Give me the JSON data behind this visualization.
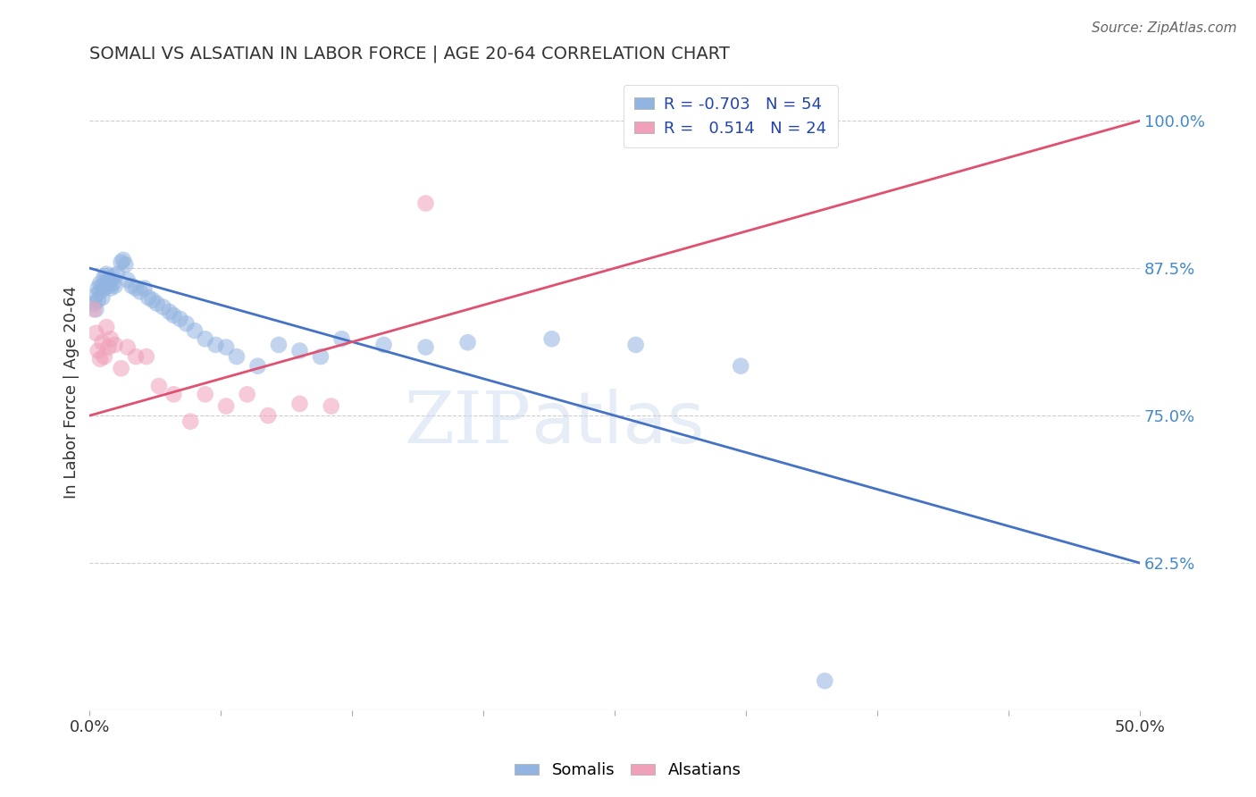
{
  "title": "SOMALI VS ALSATIAN IN LABOR FORCE | AGE 20-64 CORRELATION CHART",
  "source": "Source: ZipAtlas.com",
  "ylabel": "In Labor Force | Age 20-64",
  "xlim": [
    0.0,
    0.5
  ],
  "ylim": [
    0.5,
    1.04
  ],
  "xticks": [
    0.0,
    0.0625,
    0.125,
    0.1875,
    0.25,
    0.3125,
    0.375,
    0.4375,
    0.5
  ],
  "xticklabels_shown": [
    "0.0%",
    "",
    "",
    "",
    "",
    "",
    "",
    "",
    "50.0%"
  ],
  "yticks": [
    0.625,
    0.75,
    0.875,
    1.0
  ],
  "yticklabels": [
    "62.5%",
    "75.0%",
    "87.5%",
    "100.0%"
  ],
  "somali_color": "#92b4e0",
  "alsatian_color": "#f0a0b8",
  "somali_line_color": "#4472c4",
  "alsatian_line_color": "#e05070",
  "legend_r_somali": "-0.703",
  "legend_n_somali": "54",
  "legend_r_alsatian": "0.514",
  "legend_n_alsatian": "24",
  "somali_x": [
    0.002,
    0.003,
    0.003,
    0.004,
    0.004,
    0.005,
    0.005,
    0.006,
    0.006,
    0.007,
    0.007,
    0.008,
    0.008,
    0.009,
    0.009,
    0.01,
    0.01,
    0.011,
    0.011,
    0.012,
    0.013,
    0.015,
    0.016,
    0.017,
    0.018,
    0.02,
    0.022,
    0.024,
    0.026,
    0.028,
    0.03,
    0.032,
    0.035,
    0.038,
    0.04,
    0.043,
    0.046,
    0.05,
    0.055,
    0.06,
    0.065,
    0.07,
    0.08,
    0.09,
    0.1,
    0.11,
    0.12,
    0.14,
    0.16,
    0.18,
    0.22,
    0.26,
    0.31,
    0.35
  ],
  "somali_y": [
    0.845,
    0.84,
    0.852,
    0.848,
    0.858,
    0.855,
    0.862,
    0.85,
    0.86,
    0.858,
    0.868,
    0.862,
    0.87,
    0.865,
    0.86,
    0.858,
    0.865,
    0.862,
    0.868,
    0.86,
    0.87,
    0.88,
    0.882,
    0.878,
    0.865,
    0.86,
    0.858,
    0.855,
    0.858,
    0.85,
    0.848,
    0.845,
    0.842,
    0.838,
    0.835,
    0.832,
    0.828,
    0.822,
    0.815,
    0.81,
    0.808,
    0.8,
    0.792,
    0.81,
    0.805,
    0.8,
    0.815,
    0.81,
    0.808,
    0.812,
    0.815,
    0.81,
    0.792,
    0.525
  ],
  "alsatian_x": [
    0.002,
    0.003,
    0.004,
    0.005,
    0.006,
    0.007,
    0.008,
    0.009,
    0.01,
    0.012,
    0.015,
    0.018,
    0.022,
    0.027,
    0.033,
    0.04,
    0.048,
    0.055,
    0.065,
    0.075,
    0.085,
    0.1,
    0.115,
    0.16
  ],
  "alsatian_y": [
    0.84,
    0.82,
    0.805,
    0.798,
    0.812,
    0.8,
    0.825,
    0.808,
    0.815,
    0.81,
    0.79,
    0.808,
    0.8,
    0.8,
    0.775,
    0.768,
    0.745,
    0.768,
    0.758,
    0.768,
    0.75,
    0.76,
    0.758,
    0.93
  ],
  "watermark_zip": "ZIP",
  "watermark_atlas": "atlas",
  "background_color": "#ffffff",
  "grid_color": "#cccccc",
  "somali_line_x0": 0.0,
  "somali_line_y0": 0.875,
  "somali_line_x1": 0.5,
  "somali_line_y1": 0.625,
  "alsatian_line_x0": 0.0,
  "alsatian_line_y0": 0.75,
  "alsatian_line_x1": 0.5,
  "alsatian_line_y1": 1.0
}
